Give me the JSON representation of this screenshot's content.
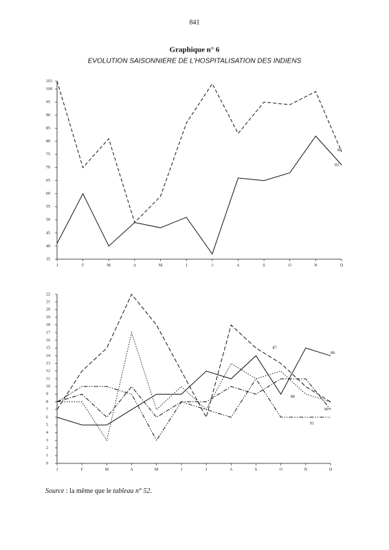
{
  "page_number": "841",
  "title": "Graphique n° 6",
  "subtitle": "EVOLUTION SAISONNIERE DE L'HOSPITALISATION DES INDIENS",
  "chart_data": [
    {
      "type": "line",
      "categories": [
        "J",
        "F",
        "M",
        "A",
        "M",
        "J",
        "J",
        "A",
        "S",
        "O",
        "N",
        "D"
      ],
      "ylim": [
        35,
        103
      ],
      "yticks": [
        35,
        40,
        45,
        50,
        55,
        60,
        65,
        70,
        75,
        80,
        85,
        90,
        95,
        100,
        103
      ],
      "series": [
        {
          "name": "84",
          "color": "#111111",
          "values": [
            103,
            70,
            81,
            49,
            59,
            87,
            102,
            83,
            95,
            94,
            99,
            76
          ]
        },
        {
          "name": "83",
          "color": "#111111",
          "values": [
            41,
            60,
            40,
            49,
            47,
            51,
            37,
            66,
            65,
            68,
            82,
            71
          ]
        }
      ]
    },
    {
      "type": "line",
      "categories": [
        "J",
        "F",
        "M",
        "A",
        "M",
        "J",
        "J",
        "A",
        "S",
        "O",
        "N",
        "D"
      ],
      "ylim": [
        0,
        22
      ],
      "yticks": [
        0,
        1,
        2,
        3,
        4,
        5,
        6,
        7,
        8,
        9,
        10,
        11,
        12,
        13,
        14,
        15,
        16,
        17,
        18,
        19,
        20,
        21,
        22
      ],
      "series": [
        {
          "name": "87",
          "color": "#111111",
          "values": [
            7,
            12,
            15,
            22,
            18,
            12,
            6,
            18,
            15,
            13,
            10,
            8
          ]
        },
        {
          "name": "89",
          "color": "#111111",
          "values": [
            6,
            5,
            5,
            7,
            9,
            9,
            12,
            11,
            14,
            9,
            15,
            14
          ]
        },
        {
          "name": "88",
          "color": "#111111",
          "values": [
            8,
            8,
            3,
            17,
            7,
            10,
            7,
            13,
            11,
            12,
            9,
            8
          ]
        },
        {
          "name": "90",
          "color": "#111111",
          "values": [
            8,
            9,
            6,
            10,
            6,
            8,
            8,
            10,
            9,
            11,
            11,
            7
          ]
        },
        {
          "name": "91",
          "color": "#111111",
          "values": [
            8,
            10,
            10,
            9,
            3,
            8,
            7,
            6,
            11,
            6,
            6,
            6
          ]
        }
      ]
    }
  ],
  "source": [
    "Source",
    "  : la même que le ",
    "tableau n° 52",
    "."
  ]
}
